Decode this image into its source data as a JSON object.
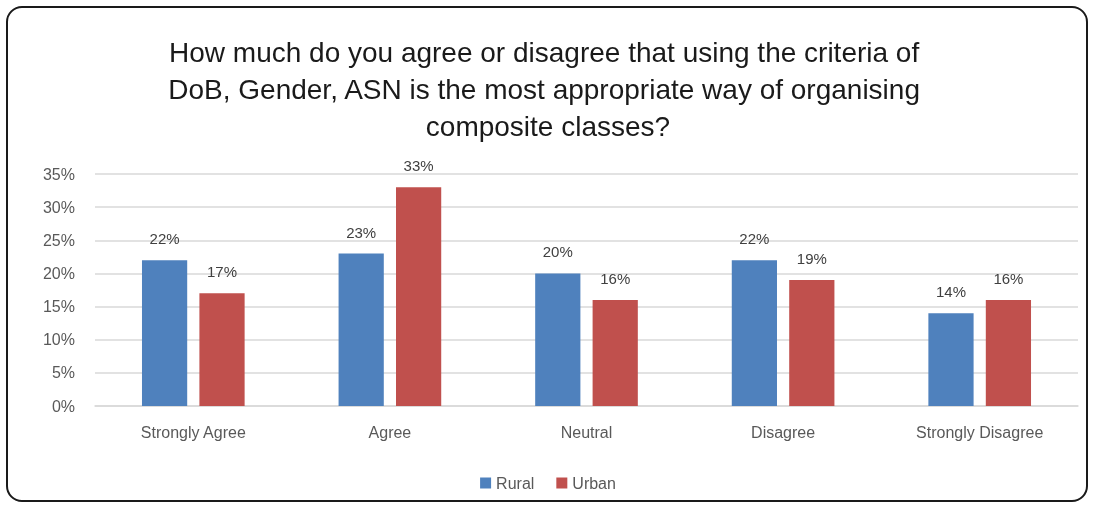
{
  "chart_data": {
    "type": "bar",
    "title": "How much do you agree or disagree that using the criteria of DoB, Gender, ASN is the most appropriate way of organising composite classes?",
    "categories": [
      "Strongly Agree",
      "Agree",
      "Neutral",
      "Disagree",
      "Strongly Disagree"
    ],
    "series": [
      {
        "name": "Rural",
        "color": "#4f81bd",
        "values": [
          22,
          23,
          20,
          22,
          14
        ],
        "value_labels": [
          "22%",
          "23%",
          "20%",
          "22%",
          "14%"
        ]
      },
      {
        "name": "Urban",
        "color": "#c0504d",
        "values": [
          17,
          33,
          16,
          19,
          16
        ],
        "value_labels": [
          "17%",
          "33%",
          "16%",
          "19%",
          "16%"
        ]
      }
    ],
    "ylim": [
      0,
      35
    ],
    "yticks": [
      {
        "value": 0,
        "label": "0%"
      },
      {
        "value": 5,
        "label": "5%"
      },
      {
        "value": 10,
        "label": "10%"
      },
      {
        "value": 15,
        "label": "15%"
      },
      {
        "value": 20,
        "label": "20%"
      },
      {
        "value": 25,
        "label": "25%"
      },
      {
        "value": 30,
        "label": "30%"
      },
      {
        "value": 35,
        "label": "35%"
      }
    ],
    "grid": "y",
    "legend": "bottom"
  }
}
